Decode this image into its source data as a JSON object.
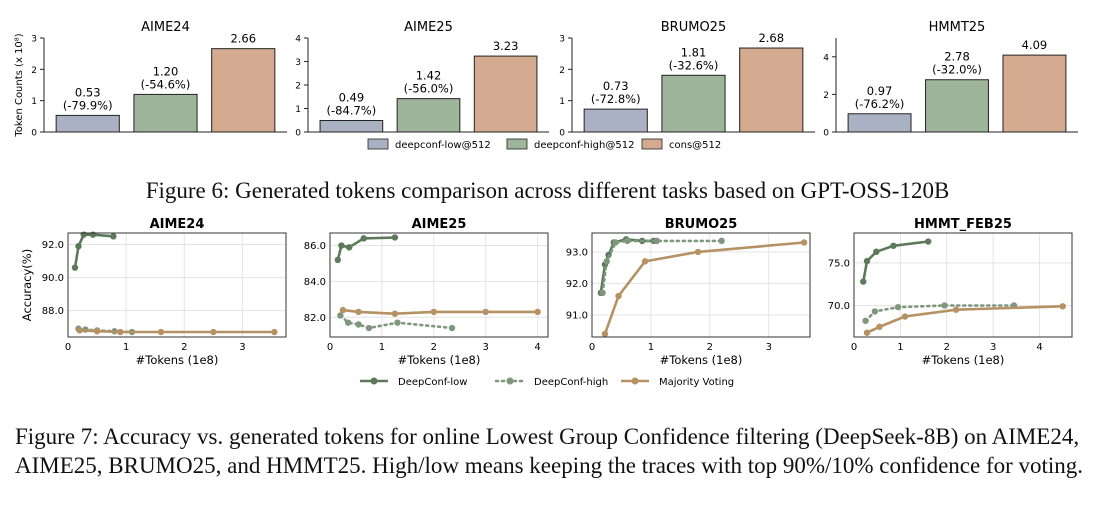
{
  "fig6": {
    "ylabel": "Token Counts (x 10⁸)",
    "caption": "Figure 6: Generated tokens comparison across different tasks based on GPT-OSS-120B",
    "legend": [
      "deepconf-low@512",
      "deepconf-high@512",
      "cons@512"
    ],
    "colors": [
      "#a9b1c2",
      "#9fb59b",
      "#d4aa91"
    ]
  },
  "fig7": {
    "ylabel": "Accuracy(%)",
    "xlabel": "#Tokens (1e8)",
    "caption": "Figure 7: Accuracy vs. generated tokens for online Lowest Group Confidence filtering (DeepSeek-8B) on AIME24, AIME25, BRUMO25, and HMMT25. High/low means keeping the traces with top 90%/10% confidence for voting.",
    "legend": [
      "DeepConf-low",
      "DeepConf-high",
      "Majority Voting"
    ],
    "colors": [
      "#5c7a5a",
      "#7f977c",
      "#b59163"
    ]
  },
  "chart_data": [
    {
      "type": "bar",
      "title": "AIME24",
      "ylabel": "Token Counts (x 10⁸)",
      "categories": [
        "deepconf-low@512",
        "deepconf-high@512",
        "cons@512"
      ],
      "values": [
        0.53,
        1.2,
        2.66
      ],
      "labels": [
        "0.53",
        "1.20",
        "2.66"
      ],
      "sublabels": [
        "(-79.9%)",
        "(-54.6%)",
        ""
      ],
      "ylim": [
        0,
        3
      ],
      "yticks": [
        0,
        1,
        2,
        3
      ]
    },
    {
      "type": "bar",
      "title": "AIME25",
      "categories": [
        "deepconf-low@512",
        "deepconf-high@512",
        "cons@512"
      ],
      "values": [
        0.49,
        1.42,
        3.23
      ],
      "labels": [
        "0.49",
        "1.42",
        "3.23"
      ],
      "sublabels": [
        "(-84.7%)",
        "(-56.0%)",
        ""
      ],
      "ylim": [
        0,
        4
      ],
      "yticks": [
        0,
        1,
        2,
        3,
        4
      ]
    },
    {
      "type": "bar",
      "title": "BRUMO25",
      "categories": [
        "deepconf-low@512",
        "deepconf-high@512",
        "cons@512"
      ],
      "values": [
        0.73,
        1.81,
        2.68
      ],
      "labels": [
        "0.73",
        "1.81",
        "2.68"
      ],
      "sublabels": [
        "(-72.8%)",
        "(-32.6%)",
        ""
      ],
      "ylim": [
        0,
        3
      ],
      "yticks": [
        0,
        1,
        2,
        3
      ]
    },
    {
      "type": "bar",
      "title": "HMMT25",
      "categories": [
        "deepconf-low@512",
        "deepconf-high@512",
        "cons@512"
      ],
      "values": [
        0.97,
        2.78,
        4.09
      ],
      "labels": [
        "0.97",
        "2.78",
        "4.09"
      ],
      "sublabels": [
        "(-76.2%)",
        "(-32.0%)",
        ""
      ],
      "ylim": [
        0,
        5
      ],
      "yticks": [
        0,
        2,
        4
      ]
    },
    {
      "type": "line",
      "title": "AIME24",
      "xlabel": "#Tokens (1e8)",
      "ylabel": "Accuracy(%)",
      "xlim": [
        0,
        3.75
      ],
      "ylim": [
        86.4,
        92.7
      ],
      "xticks": [
        0,
        1,
        2,
        3
      ],
      "yticks": [
        88.0,
        90.0,
        92.0
      ],
      "series": [
        {
          "name": "DeepConf-low",
          "x": [
            0.12,
            0.18,
            0.27,
            0.43,
            0.78
          ],
          "y": [
            90.6,
            91.9,
            92.6,
            92.6,
            92.5
          ]
        },
        {
          "name": "DeepConf-high",
          "x": [
            0.18,
            0.3,
            0.5,
            0.8,
            1.1
          ],
          "y": [
            86.9,
            86.85,
            86.8,
            86.75,
            86.7
          ]
        },
        {
          "name": "Majority Voting",
          "x": [
            0.2,
            0.5,
            0.9,
            1.6,
            2.5,
            3.55
          ],
          "y": [
            86.8,
            86.75,
            86.7,
            86.7,
            86.7,
            86.7
          ]
        }
      ]
    },
    {
      "type": "line",
      "title": "AIME25",
      "xlabel": "#Tokens (1e8)",
      "xlim": [
        0,
        4.2
      ],
      "ylim": [
        80.9,
        86.7
      ],
      "xticks": [
        0,
        1,
        2,
        3,
        4
      ],
      "yticks": [
        82.0,
        84.0,
        86.0
      ],
      "series": [
        {
          "name": "DeepConf-low",
          "x": [
            0.15,
            0.22,
            0.37,
            0.65,
            1.25
          ],
          "y": [
            85.2,
            86.0,
            85.9,
            86.4,
            86.45
          ]
        },
        {
          "name": "DeepConf-high",
          "x": [
            0.2,
            0.35,
            0.55,
            0.75,
            1.3,
            2.35
          ],
          "y": [
            82.1,
            81.7,
            81.6,
            81.4,
            81.7,
            81.4
          ]
        },
        {
          "name": "Majority Voting",
          "x": [
            0.25,
            0.55,
            1.25,
            2.0,
            3.0,
            4.0
          ],
          "y": [
            82.4,
            82.3,
            82.2,
            82.3,
            82.3,
            82.3
          ]
        }
      ]
    },
    {
      "type": "line",
      "title": "BRUMO25",
      "xlabel": "#Tokens (1e8)",
      "xlim": [
        0,
        3.7
      ],
      "ylim": [
        90.3,
        93.6
      ],
      "xticks": [
        0,
        1,
        2,
        3
      ],
      "yticks": [
        91.0,
        92.0,
        93.0
      ],
      "series": [
        {
          "name": "DeepConf-low",
          "x": [
            0.15,
            0.22,
            0.28,
            0.37,
            0.58,
            0.85,
            1.05
          ],
          "y": [
            91.7,
            92.6,
            92.9,
            93.3,
            93.4,
            93.35,
            93.35
          ]
        },
        {
          "name": "DeepConf-high",
          "x": [
            0.18,
            0.25,
            0.4,
            0.6,
            1.1,
            2.2
          ],
          "y": [
            91.7,
            92.7,
            93.3,
            93.35,
            93.35,
            93.35
          ]
        },
        {
          "name": "Majority Voting",
          "x": [
            0.22,
            0.45,
            0.9,
            1.8,
            3.6
          ],
          "y": [
            90.4,
            91.6,
            92.7,
            93.0,
            93.3
          ]
        }
      ]
    },
    {
      "type": "line",
      "title": "HMMT_FEB25",
      "xlabel": "#Tokens (1e8)",
      "xlim": [
        0,
        4.7
      ],
      "ylim": [
        66.3,
        78.5
      ],
      "xticks": [
        0,
        1,
        2,
        3,
        4
      ],
      "yticks": [
        70.0,
        75.0
      ],
      "series": [
        {
          "name": "DeepConf-low",
          "x": [
            0.2,
            0.28,
            0.48,
            0.85,
            1.6
          ],
          "y": [
            72.8,
            75.2,
            76.3,
            77.0,
            77.5
          ]
        },
        {
          "name": "DeepConf-high",
          "x": [
            0.25,
            0.45,
            0.95,
            1.95,
            3.45
          ],
          "y": [
            68.2,
            69.3,
            69.8,
            70.0,
            70.0
          ]
        },
        {
          "name": "Majority Voting",
          "x": [
            0.28,
            0.55,
            1.1,
            2.2,
            4.5
          ],
          "y": [
            66.8,
            67.5,
            68.7,
            69.5,
            69.9
          ]
        }
      ]
    }
  ]
}
